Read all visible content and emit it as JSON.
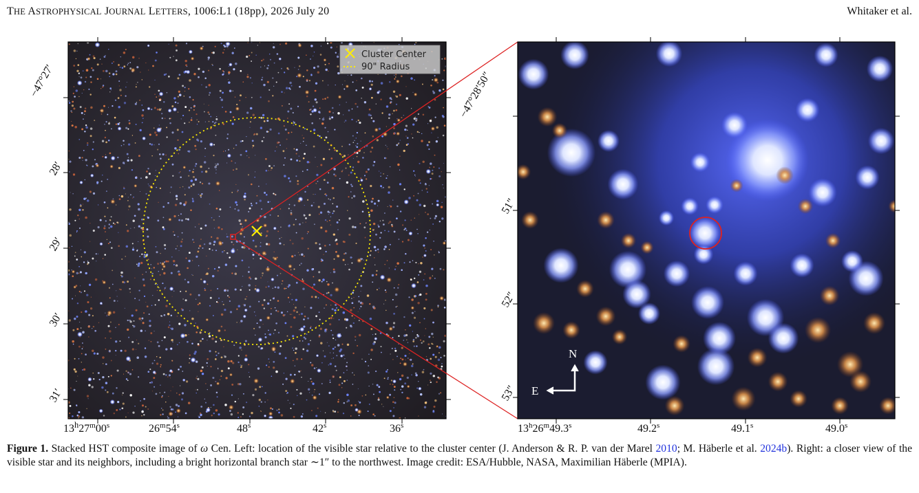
{
  "header": {
    "journal": "The Astrophysical Journal Letters",
    "citation": ", 1006:L1 (18pp), 2026 July 20",
    "authors": "Whitaker et al."
  },
  "left_panel": {
    "legend": {
      "center_label": "Cluster Center",
      "radius_label": "90\" Radius"
    },
    "dec_ticks": [
      "−47°27′",
      "28′",
      "29′",
      "30′",
      "31′"
    ],
    "ra_ticks": [
      {
        "main": "13",
        "s1": "h",
        "m2": "27",
        "s2": "m",
        "m3": "00",
        "s3": "s"
      },
      {
        "main": "26",
        "s1": "m",
        "m2": "54",
        "s2": "s"
      },
      {
        "main": "48",
        "s1": "s"
      },
      {
        "main": "42",
        "s1": "s"
      },
      {
        "main": "36",
        "s1": "s"
      }
    ]
  },
  "right_panel": {
    "dec_ticks": [
      "−47°28′50″",
      "51″",
      "52″",
      "53″"
    ],
    "ra_ticks": [
      {
        "main": "13",
        "s1": "h",
        "m2": "26",
        "s2": "m",
        "m3": "49.3",
        "s3": "s"
      },
      {
        "main": "49.2",
        "s1": "s"
      },
      {
        "main": "49.1",
        "s1": "s"
      },
      {
        "main": "49.0",
        "s1": "s"
      }
    ],
    "compass": {
      "north": "N",
      "east": "E"
    }
  },
  "colors": {
    "highlight": "#dd2222",
    "center_marker": "#ffee00",
    "link": "#2233dd"
  },
  "caption": {
    "label": "Figure 1.",
    "text1": " Stacked HST composite image of ",
    "omega": "ω",
    "text2": " Cen. Left: location of the visible star relative to the cluster center (J. Anderson & R. P. van der Marel ",
    "ref1": "2010",
    "text3": "; M. Häberle et al. ",
    "ref2": "2024b",
    "text4": "). Right: a closer view of the visible star and its neighbors, including a bright horizontal branch star ∼1″ to the northwest. Image credit: ESA/Hubble, NASA, Maximilian Häberle (MPIA)."
  }
}
